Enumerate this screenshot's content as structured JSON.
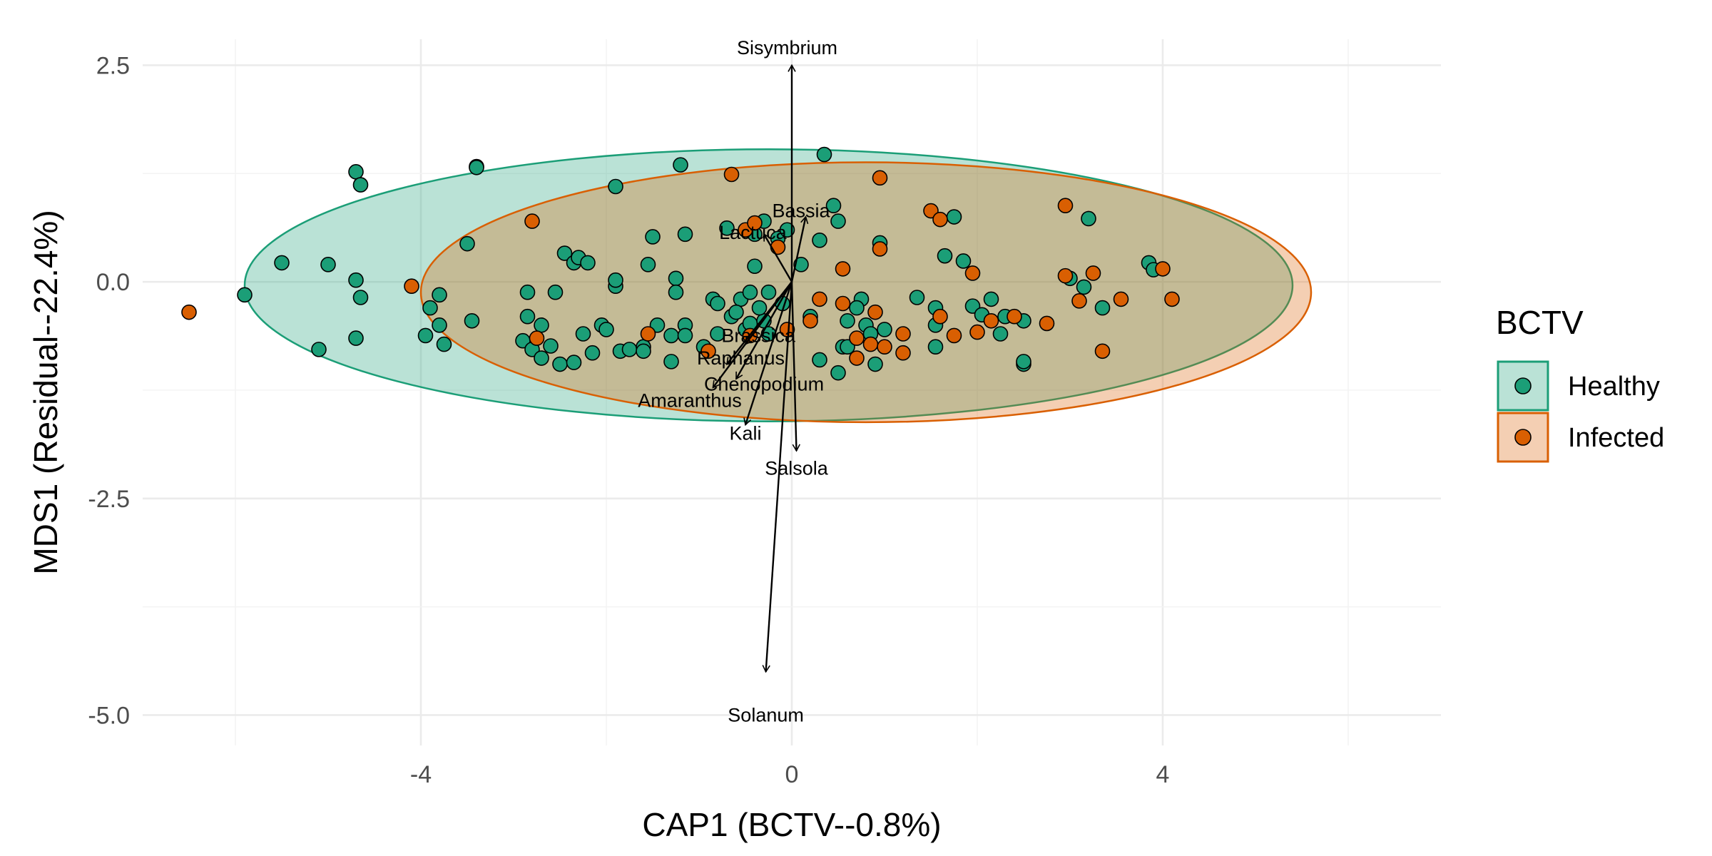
{
  "chart_data": {
    "type": "scatter",
    "xlabel": "CAP1 (BCTV--0.8%)",
    "ylabel": "MDS1 (Residual--22.4%)",
    "xlim": [
      -7.0,
      7.0
    ],
    "ylim": [
      -5.35,
      2.8
    ],
    "x_ticks": [
      -4,
      0,
      4
    ],
    "x_tick_labels": [
      "-4",
      "0",
      "4"
    ],
    "y_ticks": [
      2.5,
      0.0,
      -2.5,
      -5.0
    ],
    "y_tick_labels": [
      "2.5",
      "0.0",
      "-2.5",
      "-5.0"
    ],
    "grid": true,
    "legend": {
      "title": "BCTV",
      "position": "right",
      "entries": [
        {
          "label": "Healthy",
          "color": "#1b9e77"
        },
        {
          "label": "Infected",
          "color": "#d95f02"
        }
      ]
    },
    "ellipses": [
      {
        "group": "Healthy",
        "color": "#1b9e77",
        "center": [
          -0.25,
          -0.04
        ],
        "radii": [
          5.65,
          1.57
        ]
      },
      {
        "group": "Infected",
        "color": "#d95f02",
        "center": [
          0.8,
          -0.12
        ],
        "radii": [
          4.8,
          1.5
        ]
      }
    ],
    "series": [
      {
        "name": "Healthy",
        "color": "#1b9e77",
        "points": [
          [
            -5.9,
            -0.15
          ],
          [
            -5.5,
            0.22
          ],
          [
            -5.1,
            -0.78
          ],
          [
            -5.0,
            0.2
          ],
          [
            -4.7,
            1.27
          ],
          [
            -4.65,
            1.12
          ],
          [
            -4.7,
            0.02
          ],
          [
            -4.65,
            -0.18
          ],
          [
            -4.7,
            -0.65
          ],
          [
            -3.4,
            1.33
          ],
          [
            -3.4,
            1.32
          ],
          [
            -3.5,
            0.44
          ],
          [
            -3.9,
            -0.3
          ],
          [
            -3.8,
            -0.15
          ],
          [
            -3.8,
            -0.5
          ],
          [
            -3.75,
            -0.72
          ],
          [
            -3.95,
            -0.62
          ],
          [
            -3.45,
            -0.45
          ],
          [
            -2.85,
            -0.12
          ],
          [
            -2.85,
            -0.4
          ],
          [
            -2.7,
            -0.5
          ],
          [
            -2.9,
            -0.68
          ],
          [
            -2.8,
            -0.78
          ],
          [
            -2.7,
            -0.88
          ],
          [
            -2.6,
            -0.74
          ],
          [
            -2.5,
            -0.95
          ],
          [
            -2.55,
            -0.12
          ],
          [
            -2.45,
            0.33
          ],
          [
            -2.35,
            0.22
          ],
          [
            -2.3,
            0.28
          ],
          [
            -2.2,
            0.22
          ],
          [
            -2.25,
            -0.6
          ],
          [
            -2.35,
            -0.93
          ],
          [
            -2.15,
            -0.82
          ],
          [
            -2.05,
            -0.5
          ],
          [
            -2.0,
            -0.55
          ],
          [
            -1.9,
            -0.05
          ],
          [
            -1.9,
            0.02
          ],
          [
            -1.9,
            1.1
          ],
          [
            -1.85,
            -0.8
          ],
          [
            -1.75,
            -0.78
          ],
          [
            -1.6,
            -0.75
          ],
          [
            -1.6,
            -0.8
          ],
          [
            -1.55,
            0.2
          ],
          [
            -1.5,
            0.52
          ],
          [
            -1.45,
            -0.5
          ],
          [
            -1.3,
            -0.62
          ],
          [
            -1.2,
            1.35
          ],
          [
            -1.25,
            0.04
          ],
          [
            -1.25,
            -0.12
          ],
          [
            -1.15,
            -0.5
          ],
          [
            -1.15,
            -0.62
          ],
          [
            -1.15,
            0.55
          ],
          [
            -1.3,
            -0.92
          ],
          [
            -0.95,
            -0.75
          ],
          [
            -0.85,
            -0.2
          ],
          [
            -0.8,
            -0.25
          ],
          [
            -0.7,
            0.62
          ],
          [
            -0.65,
            -0.4
          ],
          [
            -0.55,
            -0.2
          ],
          [
            -0.5,
            -0.55
          ],
          [
            -0.45,
            -0.12
          ],
          [
            -0.45,
            -0.48
          ],
          [
            -0.4,
            0.55
          ],
          [
            -0.4,
            0.18
          ],
          [
            -0.3,
            -0.45
          ],
          [
            -0.25,
            -0.6
          ],
          [
            -0.3,
            0.7
          ],
          [
            -0.25,
            -0.12
          ],
          [
            -0.15,
            0.5
          ],
          [
            -0.1,
            -0.25
          ],
          [
            -0.05,
            0.6
          ],
          [
            0.1,
            0.2
          ],
          [
            0.3,
            0.48
          ],
          [
            0.35,
            1.47
          ],
          [
            0.45,
            0.88
          ],
          [
            0.5,
            0.7
          ],
          [
            0.3,
            -0.9
          ],
          [
            0.5,
            -1.05
          ],
          [
            0.55,
            -0.75
          ],
          [
            0.6,
            -0.45
          ],
          [
            0.6,
            -0.75
          ],
          [
            0.75,
            -0.2
          ],
          [
            0.8,
            -0.5
          ],
          [
            0.85,
            -0.6
          ],
          [
            0.9,
            -0.95
          ],
          [
            0.95,
            0.45
          ],
          [
            1.0,
            -0.55
          ],
          [
            1.35,
            -0.18
          ],
          [
            1.55,
            -0.3
          ],
          [
            1.55,
            -0.5
          ],
          [
            1.55,
            -0.75
          ],
          [
            1.65,
            0.3
          ],
          [
            1.75,
            0.75
          ],
          [
            1.85,
            0.24
          ],
          [
            1.95,
            -0.28
          ],
          [
            2.05,
            -0.38
          ],
          [
            2.15,
            -0.2
          ],
          [
            2.25,
            -0.6
          ],
          [
            2.3,
            -0.4
          ],
          [
            2.5,
            -0.95
          ],
          [
            2.5,
            -0.92
          ],
          [
            2.5,
            -0.45
          ],
          [
            3.0,
            0.04
          ],
          [
            3.15,
            -0.06
          ],
          [
            3.2,
            0.73
          ],
          [
            3.35,
            -0.3
          ],
          [
            3.85,
            0.22
          ],
          [
            3.9,
            0.14
          ],
          [
            -0.6,
            -0.35
          ],
          [
            -0.35,
            -0.3
          ],
          [
            0.2,
            -0.4
          ],
          [
            -0.8,
            -0.6
          ],
          [
            0.7,
            -0.3
          ]
        ]
      },
      {
        "name": "Infected",
        "color": "#d95f02",
        "points": [
          [
            -6.5,
            -0.35
          ],
          [
            -4.1,
            -0.05
          ],
          [
            -2.8,
            0.7
          ],
          [
            -2.75,
            -0.65
          ],
          [
            -1.55,
            -0.6
          ],
          [
            -0.65,
            1.24
          ],
          [
            -0.5,
            0.6
          ],
          [
            -0.4,
            0.68
          ],
          [
            -0.45,
            -0.62
          ],
          [
            -0.15,
            0.4
          ],
          [
            -0.05,
            -0.55
          ],
          [
            0.2,
            -0.45
          ],
          [
            0.55,
            0.15
          ],
          [
            0.55,
            -0.25
          ],
          [
            0.7,
            -0.65
          ],
          [
            0.7,
            -0.88
          ],
          [
            0.85,
            -0.72
          ],
          [
            0.95,
            1.2
          ],
          [
            0.95,
            0.38
          ],
          [
            1.0,
            -0.75
          ],
          [
            1.2,
            -0.82
          ],
          [
            1.2,
            -0.6
          ],
          [
            1.5,
            0.82
          ],
          [
            1.6,
            0.72
          ],
          [
            1.6,
            -0.4
          ],
          [
            1.75,
            -0.62
          ],
          [
            1.95,
            0.1
          ],
          [
            2.0,
            -0.58
          ],
          [
            2.15,
            -0.45
          ],
          [
            2.4,
            -0.4
          ],
          [
            2.75,
            -0.48
          ],
          [
            2.95,
            0.88
          ],
          [
            2.95,
            0.07
          ],
          [
            3.1,
            -0.22
          ],
          [
            3.25,
            0.1
          ],
          [
            3.35,
            -0.8
          ],
          [
            3.55,
            -0.2
          ],
          [
            4.0,
            0.15
          ],
          [
            4.1,
            -0.2
          ],
          [
            -0.9,
            -0.8
          ],
          [
            0.3,
            -0.2
          ],
          [
            0.9,
            -0.35
          ]
        ]
      }
    ],
    "vectors": [
      {
        "label": "Sisymbrium",
        "x": 0.0,
        "y": 2.5
      },
      {
        "label": "Bassia",
        "x": 0.15,
        "y": 0.75
      },
      {
        "label": "Lactuca",
        "x": -0.3,
        "y": 0.55
      },
      {
        "label": "Brassica",
        "x": -0.5,
        "y": -0.72
      },
      {
        "label": "Raphanus",
        "x": -0.7,
        "y": -0.95
      },
      {
        "label": "Chenopodium",
        "x": -0.6,
        "y": -1.12
      },
      {
        "label": "Amaranthus",
        "x": -0.85,
        "y": -1.22
      },
      {
        "label": "Kali",
        "x": -0.5,
        "y": -1.65
      },
      {
        "label": "Salsola",
        "x": 0.05,
        "y": -1.95
      },
      {
        "label": "Solanum",
        "x": -0.28,
        "y": -4.5
      }
    ],
    "vector_labels": [
      {
        "label": "Sisymbrium",
        "x": -0.05,
        "y": 2.7
      },
      {
        "label": "Bassia",
        "x": 0.1,
        "y": 0.82
      },
      {
        "label": "Lactuca",
        "x": -0.42,
        "y": 0.57
      },
      {
        "label": "Brassica",
        "x": -0.36,
        "y": -0.62
      },
      {
        "label": "Raphanus",
        "x": -0.55,
        "y": -0.88
      },
      {
        "label": "Chenopodium",
        "x": -0.3,
        "y": -1.18
      },
      {
        "label": "Amaranthus",
        "x": -1.1,
        "y": -1.37
      },
      {
        "label": "Kali",
        "x": -0.5,
        "y": -1.75
      },
      {
        "label": "Salsola",
        "x": 0.05,
        "y": -2.15
      },
      {
        "label": "Solanum",
        "x": -0.28,
        "y": -5.0
      }
    ]
  }
}
